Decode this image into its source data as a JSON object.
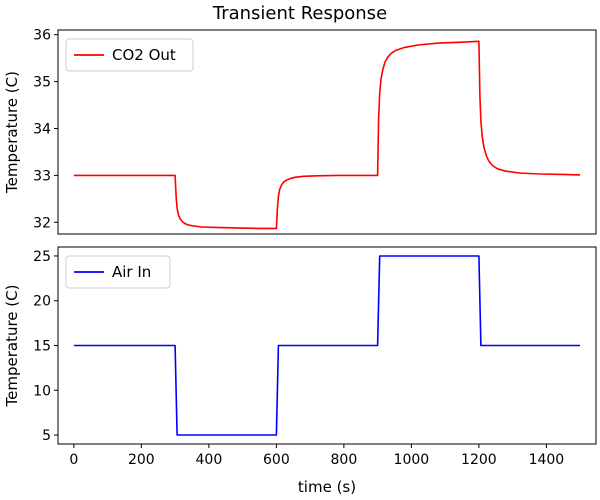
{
  "title": "Transient Response",
  "x_axis_label": "time (s)",
  "chart_data": [
    {
      "type": "line",
      "title": "",
      "xlabel": "",
      "ylabel": "Temperature (C)",
      "xlim": [
        -47,
        1547
      ],
      "ylim": [
        31.75,
        36.1
      ],
      "xticks": [],
      "yticks": [
        32,
        33,
        34,
        35,
        36
      ],
      "grid": false,
      "legend": "top-left",
      "series": [
        {
          "name": "CO2 Out",
          "color": "#ff0000",
          "x": [
            0,
            300,
            303,
            306,
            310,
            315,
            322,
            330,
            340,
            355,
            380,
            420,
            480,
            550,
            600,
            603,
            606,
            610,
            615,
            622,
            630,
            640,
            655,
            680,
            720,
            780,
            850,
            900,
            903,
            906,
            910,
            915,
            922,
            930,
            940,
            955,
            980,
            1020,
            1080,
            1150,
            1200,
            1203,
            1206,
            1210,
            1215,
            1222,
            1230,
            1240,
            1255,
            1280,
            1320,
            1380,
            1450,
            1500
          ],
          "y": [
            33.0,
            33.0,
            32.55,
            32.3,
            32.15,
            32.07,
            32.01,
            31.97,
            31.94,
            31.92,
            31.9,
            31.89,
            31.88,
            31.87,
            31.87,
            32.3,
            32.55,
            32.7,
            32.79,
            32.86,
            32.9,
            32.93,
            32.96,
            32.98,
            32.99,
            33.0,
            33.0,
            33.0,
            34.2,
            34.75,
            35.05,
            35.25,
            35.42,
            35.52,
            35.6,
            35.67,
            35.73,
            35.78,
            35.82,
            35.84,
            35.86,
            34.7,
            34.15,
            33.82,
            33.6,
            33.42,
            33.3,
            33.21,
            33.14,
            33.09,
            33.05,
            33.03,
            33.02,
            33.01
          ]
        }
      ]
    },
    {
      "type": "line",
      "title": "",
      "xlabel": "time (s)",
      "ylabel": "Temperature (C)",
      "xlim": [
        -47,
        1547
      ],
      "ylim": [
        4.0,
        26.0
      ],
      "xticks": [
        0,
        200,
        400,
        600,
        800,
        1000,
        1200,
        1400
      ],
      "yticks": [
        5,
        10,
        15,
        20,
        25
      ],
      "grid": false,
      "legend": "top-left",
      "series": [
        {
          "name": "Air In",
          "color": "#0000ff",
          "x": [
            0,
            300,
            306,
            600,
            606,
            900,
            906,
            1200,
            1206,
            1500
          ],
          "y": [
            15,
            15,
            5,
            5,
            15,
            15,
            25,
            25,
            15,
            15
          ]
        }
      ]
    }
  ]
}
